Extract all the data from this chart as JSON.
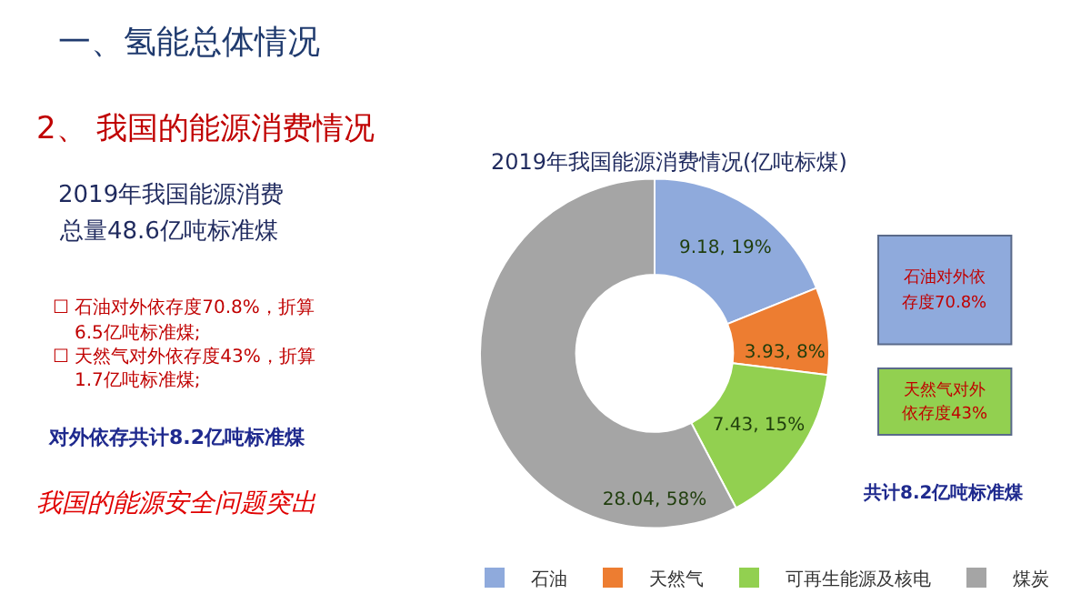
{
  "chart_data": {
    "type": "donut",
    "title": "2019年我国能源消费情况(亿吨标煤)",
    "categories": [
      "石油",
      "天然气",
      "可再生能源及核电",
      "煤炭"
    ],
    "values": [
      9.18,
      3.93,
      7.43,
      28.04
    ],
    "value_labels": [
      "9.18, 19%",
      "3.93, 8%",
      "7.43, 15%",
      "28.04, 58%"
    ],
    "colors": [
      "#8faadc",
      "#ed7d31",
      "#92d050",
      "#a5a5a5"
    ],
    "legend": "bottom",
    "annotations": [
      "一、氢能总体情况",
      "2、 我国的能源消费情况",
      "2019年我国能源消费",
      "总量48.6亿吨标准煤",
      "☐ 石油对外依存度70.8%，折算",
      "6.5亿吨标准煤;",
      "☐ 天然气对外依存度43%，折算",
      "1.7亿吨标准煤;",
      "对外依存共计8.2亿吨标准煤",
      "我国的能源安全问题突出",
      "石油对外依",
      "存度70.8%",
      "天然气对外",
      "依存度43%",
      "共计8.2亿吨标准煤"
    ]
  }
}
